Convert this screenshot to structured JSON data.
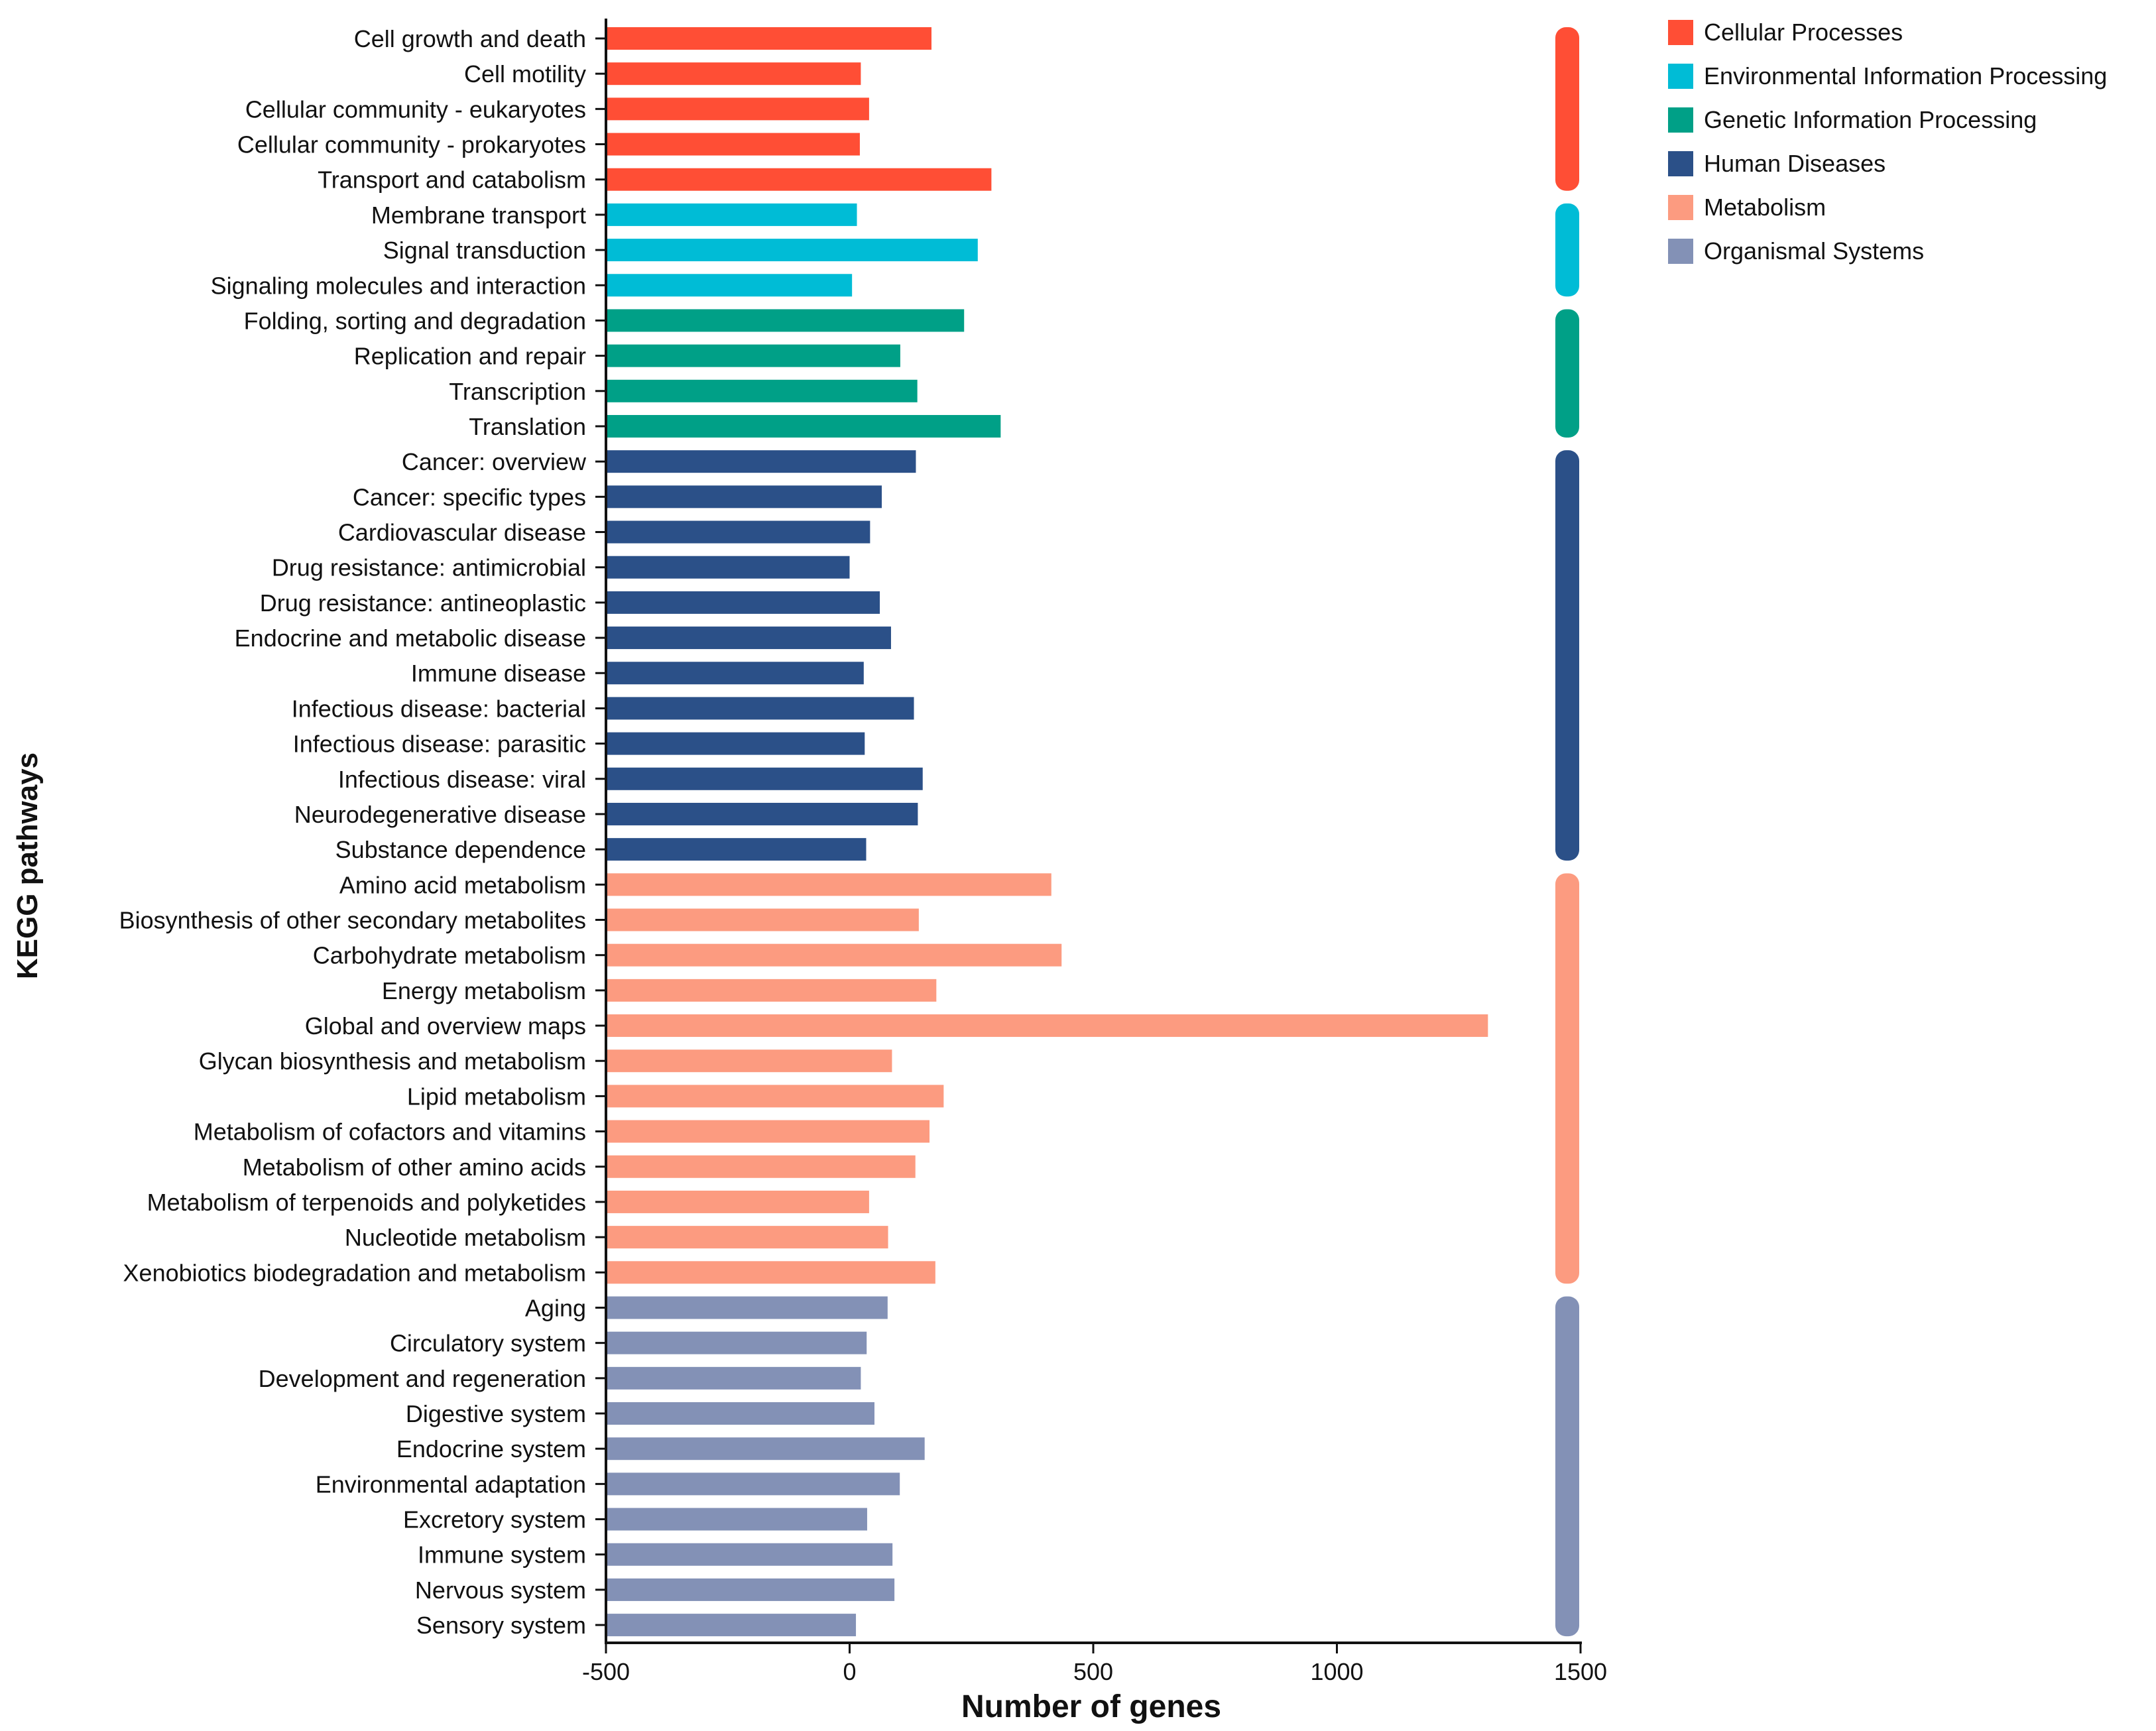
{
  "chart_data": {
    "type": "bar",
    "orientation": "horizontal",
    "title": "",
    "xlabel": "Number of genes",
    "ylabel": "KEGG pathways",
    "xlim": [
      -500,
      1500
    ],
    "xticks": [
      "-500",
      "0",
      "500",
      "1000",
      "1500"
    ],
    "xtick_values": [
      -500,
      0,
      500,
      1000,
      1500
    ],
    "legend_position": "top-right",
    "groups": [
      {
        "name": "Cellular Processes",
        "color": "#FF4E35"
      },
      {
        "name": "Environmental Information Processing",
        "color": "#00BCD6"
      },
      {
        "name": "Genetic Information Processing",
        "color": "#00A087"
      },
      {
        "name": "Human Diseases",
        "color": "#2B5088"
      },
      {
        "name": "Metabolism",
        "color": "#FC9B80"
      },
      {
        "name": "Organismal Systems",
        "color": "#8391B6"
      }
    ],
    "bars": [
      {
        "label": "Cell growth and death",
        "value": 168,
        "group": 0
      },
      {
        "label": "Cell motility",
        "value": 23,
        "group": 0
      },
      {
        "label": "Cellular community - eukaryotes",
        "value": 40,
        "group": 0
      },
      {
        "label": "Cellular community - prokaryotes",
        "value": 21,
        "group": 0
      },
      {
        "label": "Transport and catabolism",
        "value": 291,
        "group": 0
      },
      {
        "label": "Membrane transport",
        "value": 15,
        "group": 1
      },
      {
        "label": "Signal transduction",
        "value": 263,
        "group": 1
      },
      {
        "label": "Signaling molecules and interaction",
        "value": 5,
        "group": 1
      },
      {
        "label": "Folding, sorting and degradation",
        "value": 235,
        "group": 2
      },
      {
        "label": "Replication and repair",
        "value": 104,
        "group": 2
      },
      {
        "label": "Transcription",
        "value": 139,
        "group": 2
      },
      {
        "label": "Translation",
        "value": 310,
        "group": 2
      },
      {
        "label": "Cancer: overview",
        "value": 136,
        "group": 3
      },
      {
        "label": "Cancer: specific types",
        "value": 66,
        "group": 3
      },
      {
        "label": "Cardiovascular disease",
        "value": 42,
        "group": 3
      },
      {
        "label": "Drug resistance: antimicrobial",
        "value": 0,
        "group": 3
      },
      {
        "label": "Drug resistance: antineoplastic",
        "value": 62,
        "group": 3
      },
      {
        "label": "Endocrine and metabolic disease",
        "value": 85,
        "group": 3
      },
      {
        "label": "Immune disease",
        "value": 29,
        "group": 3
      },
      {
        "label": "Infectious disease: bacterial",
        "value": 132,
        "group": 3
      },
      {
        "label": "Infectious disease: parasitic",
        "value": 31,
        "group": 3
      },
      {
        "label": "Infectious disease: viral",
        "value": 150,
        "group": 3
      },
      {
        "label": "Neurodegenerative disease",
        "value": 140,
        "group": 3
      },
      {
        "label": "Substance dependence",
        "value": 34,
        "group": 3
      },
      {
        "label": "Amino acid metabolism",
        "value": 414,
        "group": 4
      },
      {
        "label": "Biosynthesis of other secondary metabolites",
        "value": 142,
        "group": 4
      },
      {
        "label": "Carbohydrate metabolism",
        "value": 435,
        "group": 4
      },
      {
        "label": "Energy metabolism",
        "value": 178,
        "group": 4
      },
      {
        "label": "Global and overview maps",
        "value": 1310,
        "group": 4
      },
      {
        "label": "Glycan biosynthesis and metabolism",
        "value": 87,
        "group": 4
      },
      {
        "label": "Lipid metabolism",
        "value": 193,
        "group": 4
      },
      {
        "label": "Metabolism of cofactors and vitamins",
        "value": 164,
        "group": 4
      },
      {
        "label": "Metabolism of other amino acids",
        "value": 135,
        "group": 4
      },
      {
        "label": "Metabolism of terpenoids and polyketides",
        "value": 40,
        "group": 4
      },
      {
        "label": "Nucleotide metabolism",
        "value": 79,
        "group": 4
      },
      {
        "label": "Xenobiotics biodegradation and metabolism",
        "value": 176,
        "group": 4
      },
      {
        "label": "Aging",
        "value": 78,
        "group": 5
      },
      {
        "label": "Circulatory system",
        "value": 35,
        "group": 5
      },
      {
        "label": "Development and regeneration",
        "value": 23,
        "group": 5
      },
      {
        "label": "Digestive system",
        "value": 51,
        "group": 5
      },
      {
        "label": "Endocrine system",
        "value": 154,
        "group": 5
      },
      {
        "label": "Environmental adaptation",
        "value": 103,
        "group": 5
      },
      {
        "label": "Excretory system",
        "value": 36,
        "group": 5
      },
      {
        "label": "Immune system",
        "value": 88,
        "group": 5
      },
      {
        "label": "Nervous system",
        "value": 92,
        "group": 5
      },
      {
        "label": "Sensory system",
        "value": 13,
        "group": 5
      }
    ]
  }
}
